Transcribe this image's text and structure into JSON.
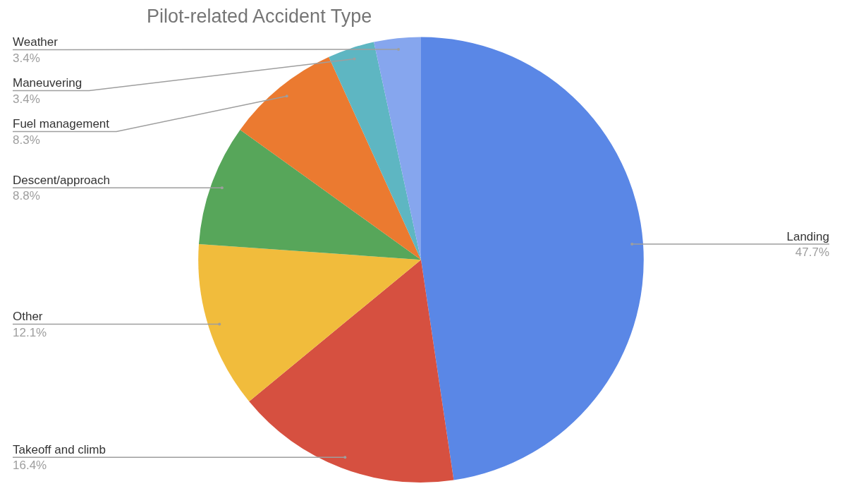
{
  "chart_data": {
    "type": "pie",
    "title": "Pilot-related Accident Type",
    "categories": [
      "Landing",
      "Takeoff and climb",
      "Other",
      "Descent/approach",
      "Fuel management",
      "Maneuvering",
      "Weather"
    ],
    "values": [
      47.7,
      16.4,
      12.1,
      8.8,
      8.3,
      3.4,
      3.4
    ],
    "value_labels": [
      "47.7%",
      "16.4%",
      "12.1%",
      "8.8%",
      "8.3%",
      "3.4%",
      "3.4%"
    ],
    "colors": [
      "#5a87e6",
      "#d65040",
      "#f1bc3c",
      "#57a65a",
      "#eb7a30",
      "#5eb6c2",
      "#86a6ee"
    ],
    "legend": false
  }
}
